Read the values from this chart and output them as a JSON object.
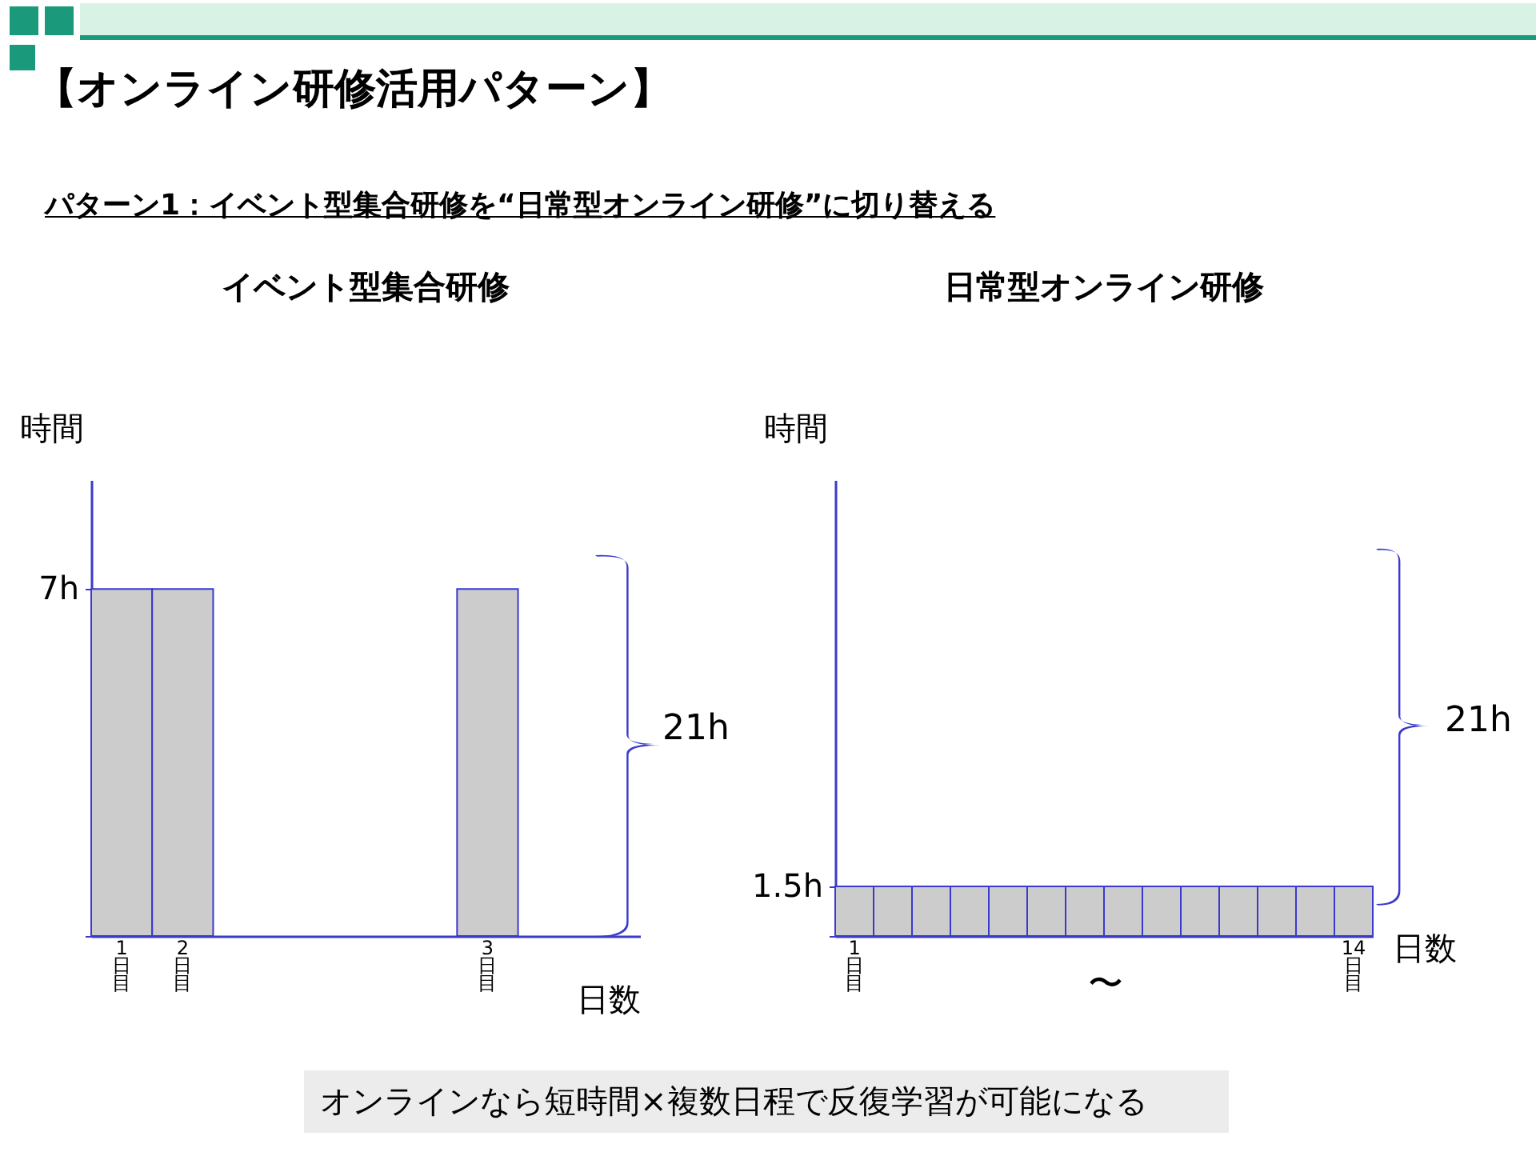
{
  "chart_data": [
    {
      "type": "bar",
      "title": "イベント型集合研修",
      "xlabel": "日数",
      "ylabel": "時間",
      "categories": [
        "1日目",
        "2日目",
        null,
        null,
        null,
        null,
        "3日目",
        null,
        null
      ],
      "values": [
        7,
        7,
        null,
        null,
        null,
        null,
        7,
        null,
        null
      ],
      "color": "#cccccc",
      "ylim": [
        0,
        9.2
      ],
      "yticks": [
        {
          "value": 0,
          "label": null
        },
        {
          "value": 7,
          "label": "7h"
        }
      ],
      "grid": false,
      "annotations": [
        "【オンライン研修活用パターン】",
        "パターン1：イベント型集合研修を“日常型オンライン研修”に切り替える",
        "21h"
      ]
    },
    {
      "type": "bar",
      "title": "日常型オンライン研修",
      "xlabel": "日数",
      "ylabel": "時間",
      "categories": [
        "1日目",
        null,
        null,
        null,
        null,
        null,
        null,
        null,
        null,
        null,
        null,
        null,
        null,
        "14日目"
      ],
      "values": [
        1.5,
        1.5,
        1.5,
        1.5,
        1.5,
        1.5,
        1.5,
        1.5,
        1.5,
        1.5,
        1.5,
        1.5,
        1.5,
        1.5
      ],
      "color": "#cccccc",
      "ylim": [
        0,
        13.8
      ],
      "yticks": [
        {
          "value": 0,
          "label": null
        },
        {
          "value": 1.5,
          "label": "1.5h"
        }
      ],
      "grid": false,
      "annotations": [
        "21h",
        "〜",
        "オンラインなら短時間×複数日程で反復学習が可能になる"
      ]
    }
  ]
}
